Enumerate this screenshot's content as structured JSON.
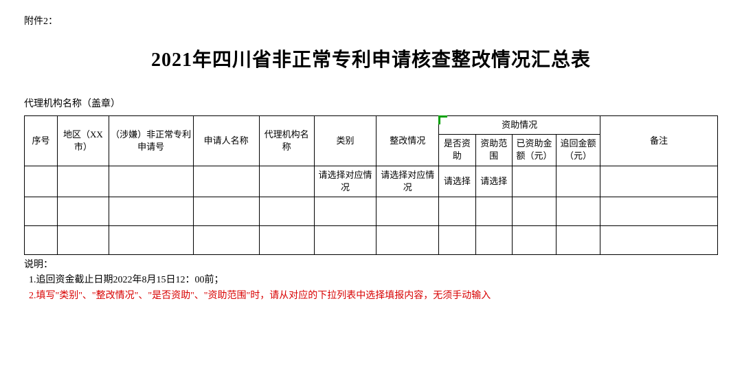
{
  "attachment_label": "附件2：",
  "main_title": "2021年四川省非正常专利申请核查整改情况汇总表",
  "agency_label": "代理机构名称（盖章）",
  "table": {
    "columns": {
      "seq": "序号",
      "region": "地区（XX市）",
      "patent_no": "（涉嫌）非正常专利申请号",
      "applicant": "申请人名称",
      "agency": "代理机构名称",
      "category": "类别",
      "rectify": "整改情况",
      "funding_group": "资助情况",
      "funded": "是否资助",
      "fund_scope": "资助范围",
      "funded_amount": "已资助金额（元）",
      "recover_amount": "追回金额（元）",
      "remark": "备注"
    },
    "row1": {
      "category": "请选择对应情况",
      "rectify": "请选择对应情况",
      "funded": "请选择",
      "fund_scope": "请选择"
    }
  },
  "notes": {
    "label": "说明：",
    "line1": "  1.追回资金截止日期2022年8月15日12：00前；",
    "line2": "  2.填写\"类别\"、\"整改情况\"、\"是否资助\"、\"资助范围\"时，请从对应的下拉列表中选择填报内容，无须手动输入"
  },
  "col_widths": {
    "seq": "45px",
    "region": "70px",
    "patent_no": "115px",
    "applicant": "90px",
    "agency": "75px",
    "category": "85px",
    "rectify": "85px",
    "funded": "50px",
    "fund_scope": "50px",
    "funded_amount": "60px",
    "recover_amount": "60px",
    "remark": "160px"
  }
}
